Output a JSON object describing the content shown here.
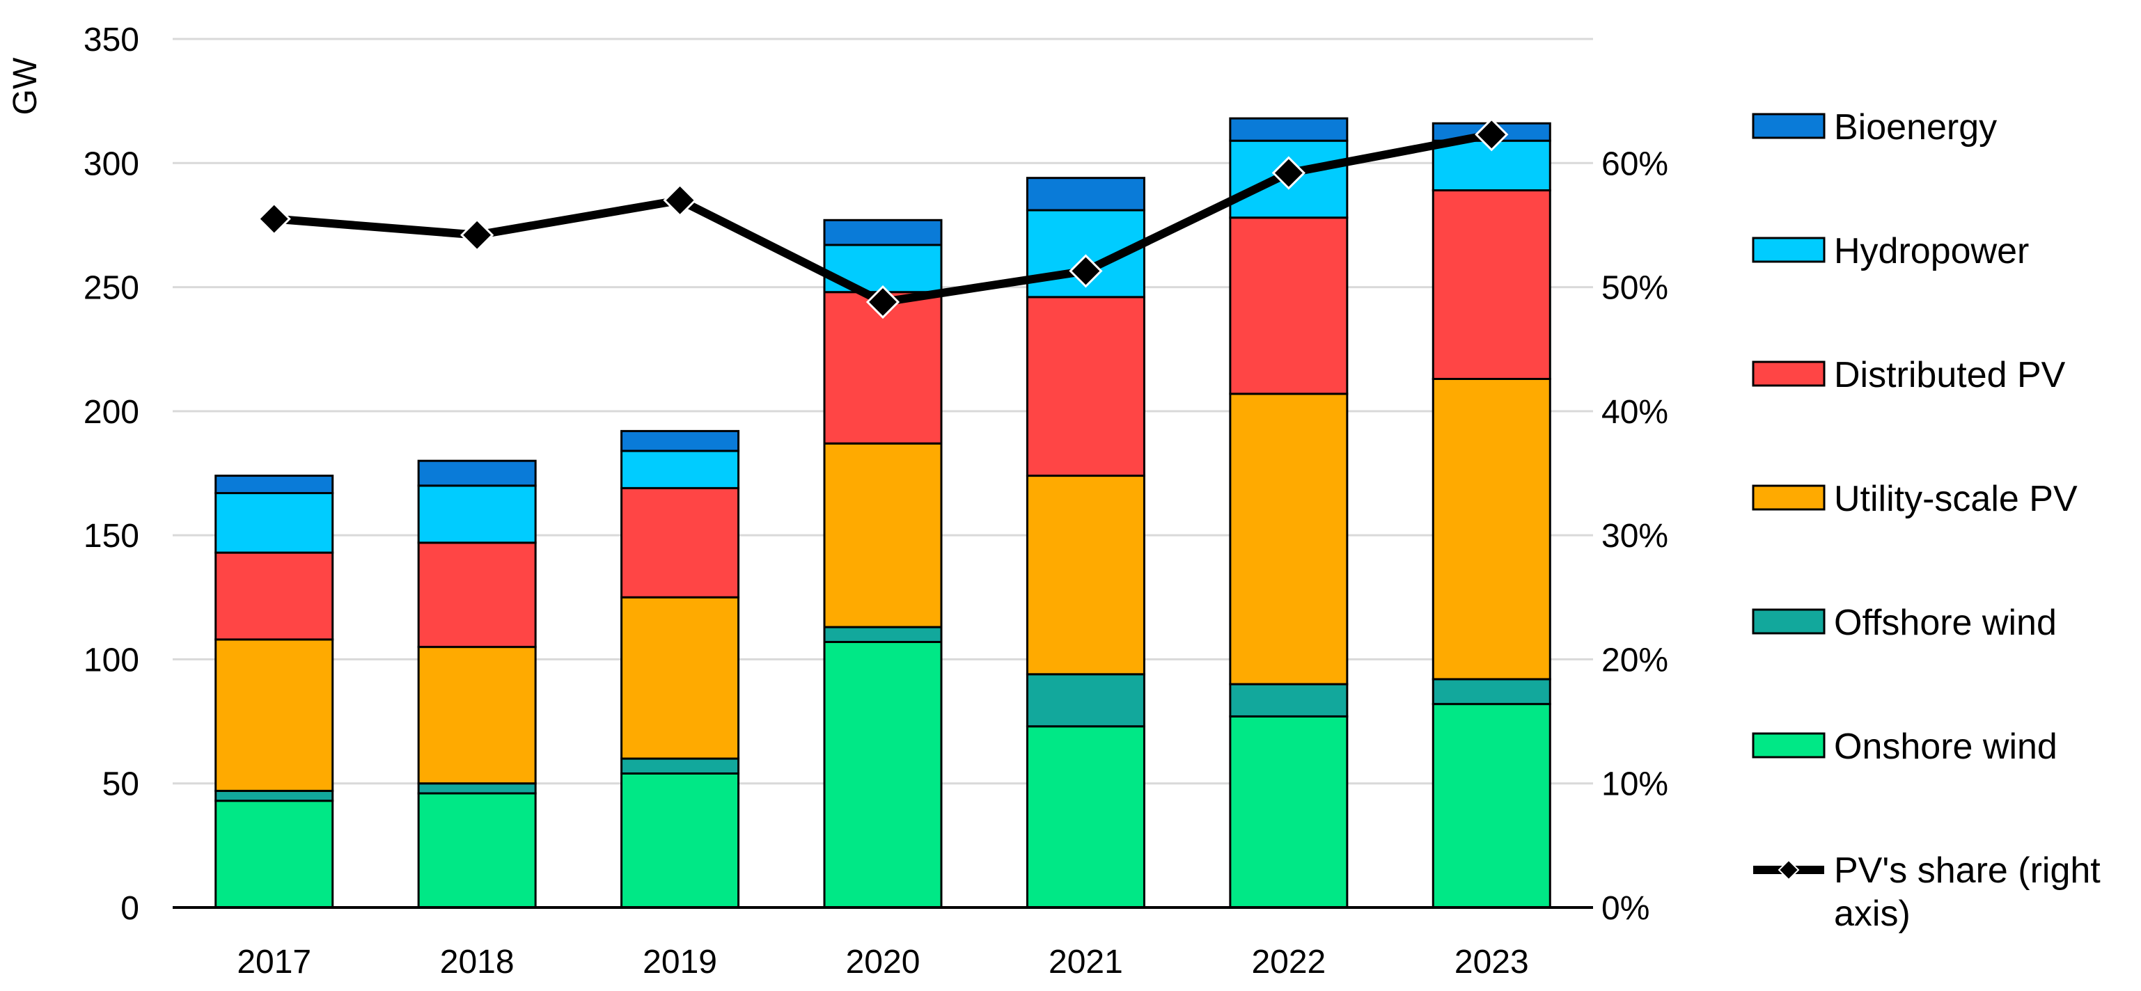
{
  "chart_data": {
    "type": "bar",
    "stacked": true,
    "categories": [
      "2017",
      "2018",
      "2019",
      "2020",
      "2021",
      "2022",
      "2023"
    ],
    "ylabel": "GW",
    "ylim": [
      0,
      350
    ],
    "yticks": [
      "0",
      "50",
      "100",
      "150",
      "200",
      "250",
      "300",
      "350"
    ],
    "y2lim": [
      0,
      0.7
    ],
    "y2ticks": [
      "0%",
      "10%",
      "20%",
      "30%",
      "40%",
      "50%",
      "60%"
    ],
    "grid": true,
    "legend_position": "right",
    "series": [
      {
        "name": "Onshore wind",
        "color": "#00E886",
        "values": [
          43,
          46,
          54,
          107,
          73,
          77,
          82
        ]
      },
      {
        "name": "Offshore wind",
        "color": "#12A89C",
        "values": [
          4,
          4,
          6,
          6,
          21,
          13,
          10
        ]
      },
      {
        "name": "Utility-scale PV",
        "color": "#FFAA00",
        "values": [
          61,
          55,
          65,
          74,
          80,
          117,
          121
        ]
      },
      {
        "name": "Distributed PV",
        "color": "#FF4545",
        "values": [
          35,
          42,
          44,
          61,
          72,
          71,
          76
        ]
      },
      {
        "name": "Hydropower",
        "color": "#00CCFF",
        "values": [
          24,
          23,
          15,
          19,
          35,
          31,
          20
        ]
      },
      {
        "name": "Bioenergy",
        "color": "#0A7BD8",
        "values": [
          7,
          10,
          8,
          10,
          13,
          9,
          7
        ]
      }
    ],
    "line_series": {
      "name": "PV's share (right axis)",
      "color": "#000000",
      "axis": "right",
      "values": [
        0.555,
        0.542,
        0.57,
        0.488,
        0.513,
        0.592,
        0.623
      ]
    }
  }
}
